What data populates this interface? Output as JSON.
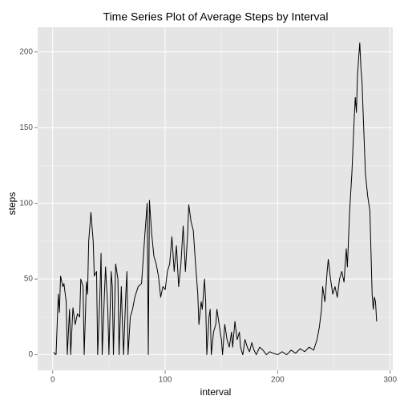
{
  "chart_data": {
    "type": "line",
    "title": "Time Series Plot of Average Steps by Interval",
    "x_label": "interval",
    "y_label": "steps",
    "x": [
      1,
      2,
      3,
      5,
      6,
      7,
      9,
      10,
      12,
      13,
      15,
      16,
      18,
      20,
      22,
      24,
      25,
      27,
      28,
      30,
      31,
      32,
      34,
      36,
      37,
      39,
      40,
      42,
      43,
      44,
      46,
      47,
      49,
      50,
      52,
      53,
      54,
      56,
      58,
      59,
      61,
      62,
      63,
      65,
      66,
      67,
      69,
      71,
      73,
      76,
      79,
      82,
      84,
      85,
      86,
      88,
      90,
      92,
      94,
      96,
      98,
      100,
      102,
      104,
      106,
      108,
      110,
      112,
      114,
      116,
      118,
      120,
      121,
      123,
      125,
      127,
      129,
      130,
      132,
      133,
      135,
      136,
      137,
      139,
      140,
      141,
      143,
      145,
      146,
      148,
      150,
      151,
      153,
      155,
      157,
      159,
      160,
      162,
      164,
      166,
      167,
      169,
      171,
      173,
      175,
      177,
      179,
      181,
      184,
      187,
      190,
      193,
      196,
      200,
      204,
      208,
      212,
      216,
      220,
      224,
      228,
      232,
      235,
      237,
      239,
      240,
      242,
      244,
      245,
      247,
      249,
      251,
      253,
      255,
      257,
      259,
      261,
      262,
      264,
      266,
      268,
      269,
      270,
      271,
      273,
      274,
      275,
      277,
      278,
      280,
      282,
      284,
      285,
      286,
      287,
      288
    ],
    "series": [
      {
        "name": "steps",
        "color": "#000000",
        "values": [
          1.7,
          0.3,
          0.1,
          40,
          28,
          52,
          45,
          47,
          35,
          0,
          30,
          0,
          31,
          20,
          27,
          25,
          50,
          45,
          0,
          48,
          40,
          75,
          94,
          75,
          52,
          55,
          0,
          40,
          67,
          0,
          40,
          58,
          30,
          0,
          55,
          45,
          0,
          60,
          50,
          0,
          45,
          20,
          0,
          40,
          55,
          0,
          25,
          30,
          38,
          45,
          47,
          80,
          100,
          0,
          102,
          80,
          65,
          60,
          52,
          38,
          45,
          43,
          55,
          60,
          78,
          55,
          72,
          45,
          60,
          85,
          55,
          80,
          99,
          88,
          82,
          60,
          40,
          20,
          35,
          30,
          50,
          35,
          0,
          25,
          30,
          0,
          15,
          20,
          30,
          20,
          10,
          0,
          20,
          10,
          5,
          15,
          5,
          22,
          10,
          15,
          5,
          0,
          10,
          5,
          2,
          8,
          3,
          0,
          5,
          3,
          0,
          2,
          1,
          0,
          2,
          0,
          3,
          1,
          4,
          2,
          5,
          3,
          10,
          18,
          30,
          45,
          35,
          55,
          63,
          50,
          40,
          45,
          38,
          50,
          55,
          48,
          70,
          58,
          95,
          120,
          155,
          170,
          160,
          185,
          206,
          190,
          180,
          140,
          120,
          105,
          95,
          40,
          30,
          38,
          35,
          22
        ]
      }
    ],
    "xlim": [
      -13.35,
      302.35
    ],
    "ylim": [
      -10.3,
      216.3
    ],
    "xticks": [
      0,
      100,
      200,
      300
    ],
    "yticks": [
      0,
      50,
      100,
      150,
      200
    ],
    "xminor": [
      50,
      150,
      250
    ],
    "yminor": [
      25,
      75,
      125,
      175
    ],
    "grid": true,
    "background": "#e5e5e5",
    "grid_color": "#ffffff"
  }
}
